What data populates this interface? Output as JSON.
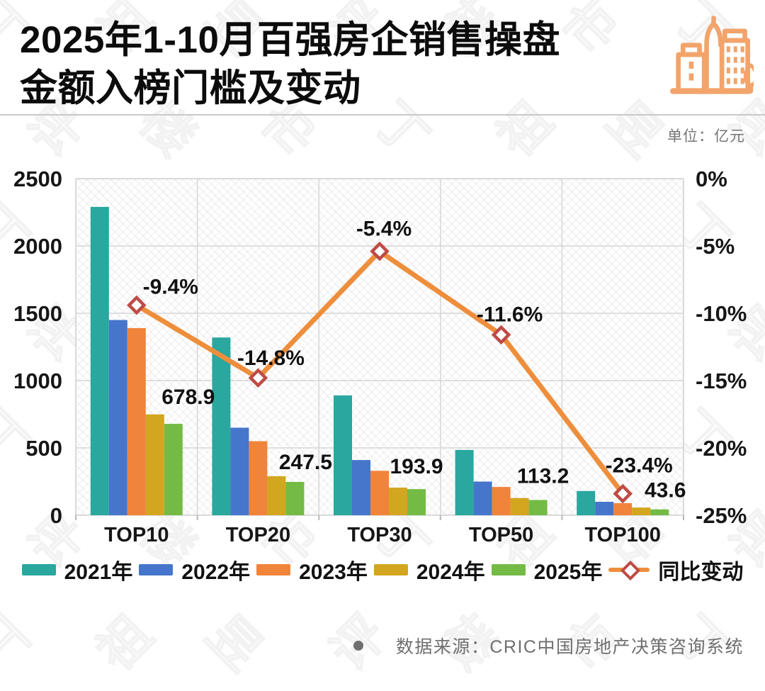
{
  "header": {
    "title_line1": "2025年1-10月百强房企销售操盘",
    "title_line2": "金额入榜门槛及变动",
    "unit_label": "单位：亿元"
  },
  "watermark_text": "丁祖昱评楼市",
  "chart_data": {
    "type": "bar",
    "subtype": "grouped-bar-with-line",
    "title": "2025年1-10月百强房企销售操盘金额入榜门槛及变动",
    "unit": "亿元",
    "categories": [
      "TOP10",
      "TOP20",
      "TOP30",
      "TOP50",
      "TOP100"
    ],
    "series": [
      {
        "name": "2021年",
        "type": "bar",
        "color": "#2aa79e",
        "values": [
          2290,
          1320,
          890,
          485,
          180
        ]
      },
      {
        "name": "2022年",
        "type": "bar",
        "color": "#4576cb",
        "values": [
          1450,
          650,
          410,
          250,
          100
        ]
      },
      {
        "name": "2023年",
        "type": "bar",
        "color": "#f0843a",
        "values": [
          1390,
          550,
          330,
          210,
          90
        ]
      },
      {
        "name": "2024年",
        "type": "bar",
        "color": "#d2a61e",
        "values": [
          749,
          290,
          205,
          128,
          57
        ]
      },
      {
        "name": "2025年",
        "type": "bar",
        "color": "#73bb45",
        "values": [
          678.9,
          247.5,
          193.9,
          113.2,
          43.6
        ],
        "labels": [
          "678.9",
          "247.5",
          "193.9",
          "113.2",
          "43.6"
        ]
      },
      {
        "name": "同比变动",
        "type": "line",
        "color": "#ee8e3c",
        "marker_color": "#be4b45",
        "values": [
          -9.4,
          -14.8,
          -5.4,
          -11.6,
          -23.4
        ],
        "labels": [
          "-9.4%",
          "-14.8%",
          "-5.4%",
          "-11.6%",
          "-23.4%"
        ]
      }
    ],
    "left_axis": {
      "ticks": [
        "2500",
        "2000",
        "1500",
        "1000",
        "500",
        "0"
      ],
      "range": [
        0,
        2500
      ]
    },
    "right_axis": {
      "ticks": [
        "0%",
        "-5%",
        "-10%",
        "-15%",
        "-20%",
        "-25%"
      ],
      "range": [
        0,
        -25
      ]
    },
    "grid": true,
    "legend_position": "bottom"
  },
  "footer": {
    "source_text": "数据来源：CRIC中国房地产决策咨询系统"
  }
}
